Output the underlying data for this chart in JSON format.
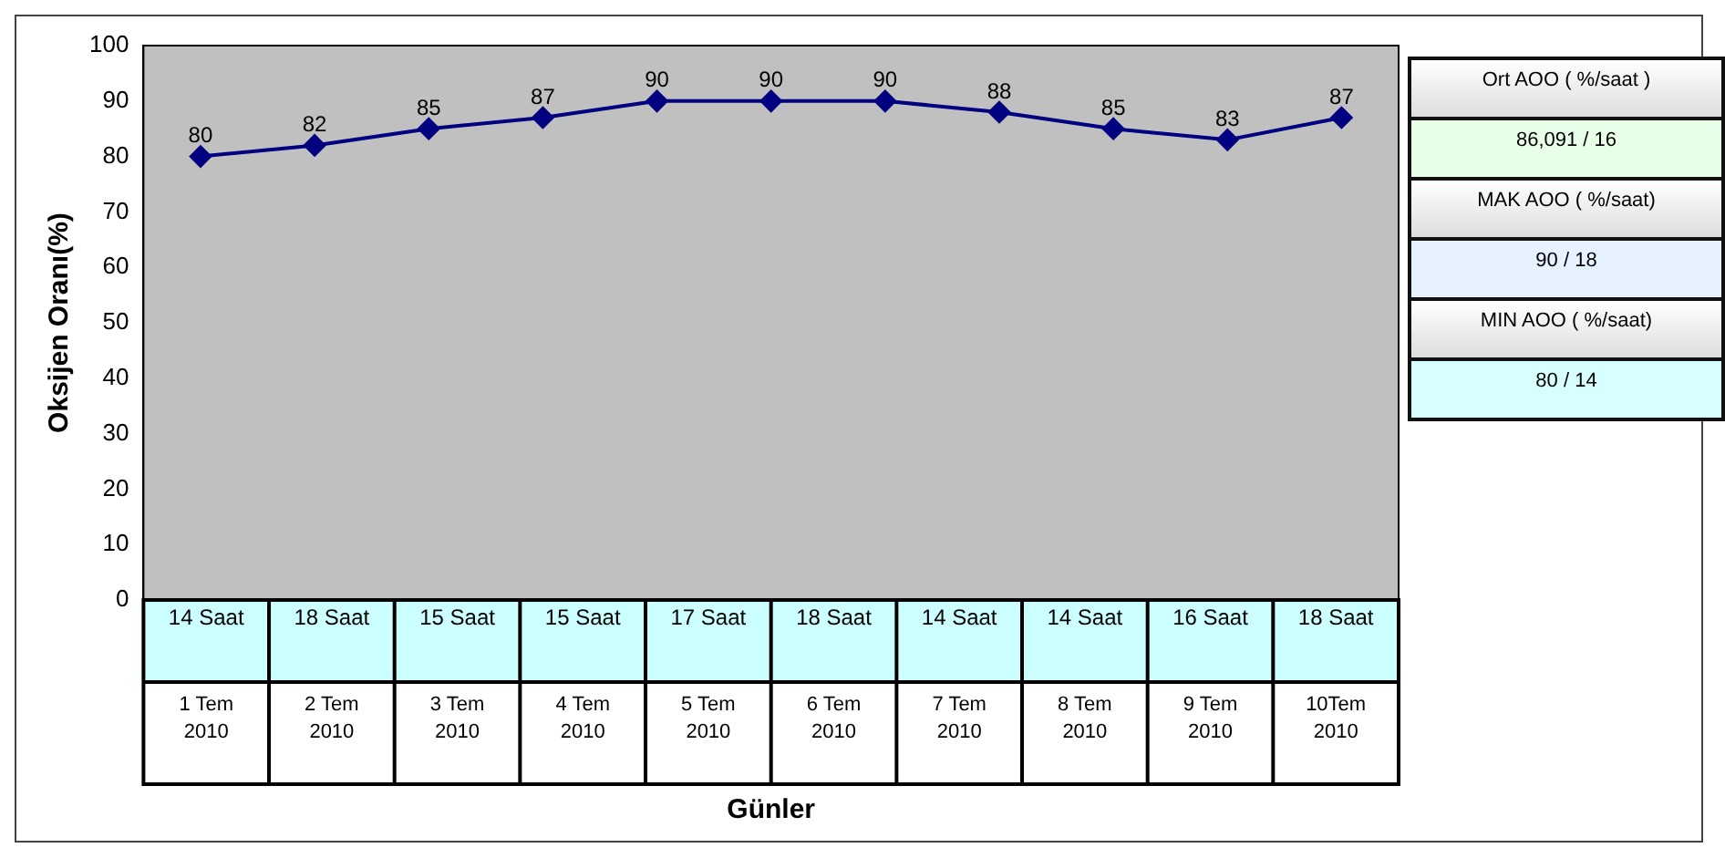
{
  "chart_data": {
    "type": "line",
    "ylabel": "Oksijen Oranı(%)",
    "categories": [
      null,
      null,
      null,
      null,
      null,
      null,
      null,
      null,
      null,
      null,
      null
    ],
    "values": [
      80,
      82,
      85,
      87,
      90,
      90,
      90,
      88,
      85,
      83,
      87
    ],
    "color": "#000080",
    "marker": "diamond",
    "data_labels": true,
    "ylim": [
      0,
      100
    ],
    "yticks": [
      0,
      10,
      20,
      30,
      40,
      50,
      60,
      70,
      80,
      90,
      100
    ],
    "grid": false,
    "legend": false,
    "annotations": [
      "14 Saat",
      "18 Saat",
      "15 Saat",
      "15 Saat",
      "17 Saat",
      "18 Saat",
      "14 Saat",
      "14 Saat",
      "16 Saat",
      "18 Saat",
      "1 Tem 2010",
      "2 Tem 2010",
      "3 Tem 2010",
      "4 Tem 2010",
      "5 Tem 2010",
      "6 Tem 2010",
      "7 Tem 2010",
      "8 Tem 2010",
      "9 Tem 2010",
      "10Tem 2010",
      "Günler",
      "Ort AOO ( %/saat )",
      "86,091 / 16",
      "MAK AOO ( %/saat)",
      "90 / 18",
      "MIN AOO ( %/saat)",
      "80 / 14"
    ]
  }
}
